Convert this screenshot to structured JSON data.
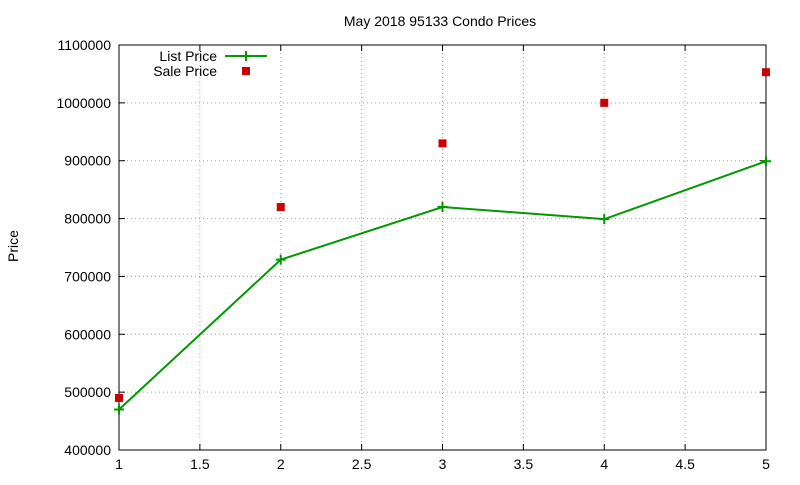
{
  "chart_data": {
    "type": "line",
    "title": "May 2018 95133 Condo Prices",
    "xlabel": "",
    "ylabel": "Price",
    "xlim": [
      1,
      5
    ],
    "ylim": [
      400000,
      1100000
    ],
    "x_ticks": [
      "1",
      "1.5",
      "2",
      "2.5",
      "3",
      "3.5",
      "4",
      "4.5",
      "5"
    ],
    "y_ticks": [
      "400000",
      "500000",
      "600000",
      "700000",
      "800000",
      "900000",
      "1000000",
      "1100000"
    ],
    "grid": true,
    "legend_position": "top-left",
    "series": [
      {
        "name": "List Price",
        "style": "line-with-plus-markers",
        "color": "#009900",
        "x": [
          1,
          2,
          3,
          4,
          5
        ],
        "y": [
          470000,
          729000,
          820000,
          799000,
          899000
        ]
      },
      {
        "name": "Sale Price",
        "style": "square-markers",
        "color": "#cc0000",
        "x": [
          1,
          2,
          3,
          4,
          5
        ],
        "y": [
          490000,
          820000,
          930000,
          1000000,
          1053000
        ]
      }
    ]
  }
}
